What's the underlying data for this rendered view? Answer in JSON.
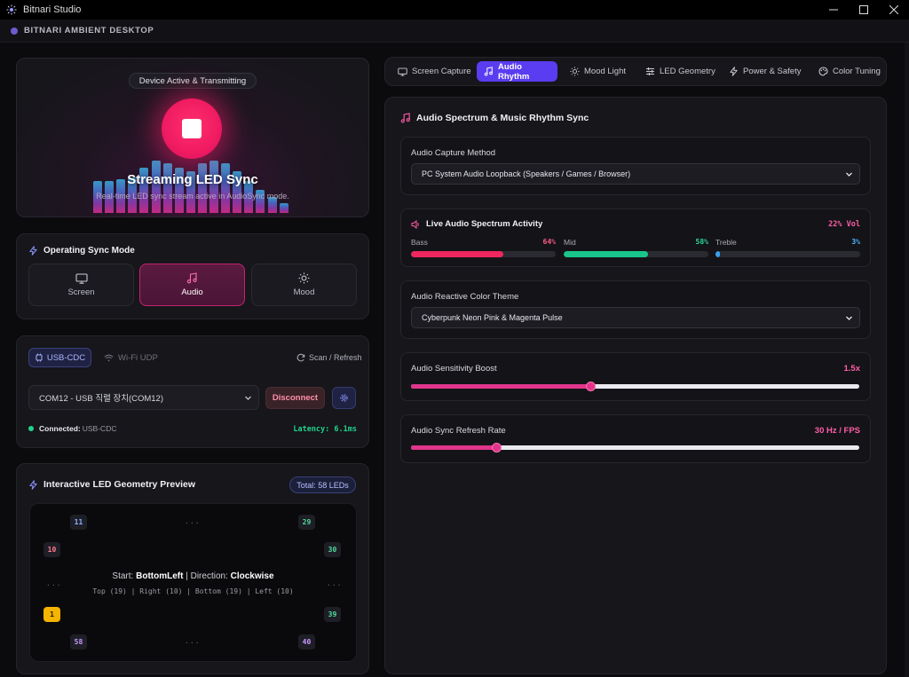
{
  "window": {
    "title": "Bitnari Studio",
    "app_header": "BITNARI AMBIENT DESKTOP"
  },
  "hero": {
    "status_pill": "Device Active & Transmitting",
    "title": "Streaming LED Sync",
    "subtitle": "Real-time LED sync stream active in AudioSync mode.",
    "bar_levels": [
      0.55,
      0.55,
      0.58,
      0.62,
      0.78,
      0.9,
      0.86,
      0.78,
      0.72,
      0.86,
      0.9,
      0.86,
      0.72,
      0.55,
      0.4,
      0.28,
      0.17
    ]
  },
  "sync_mode": {
    "title": "Operating Sync Mode",
    "options": [
      {
        "label": "Screen",
        "icon": "monitor-icon"
      },
      {
        "label": "Audio",
        "icon": "music-note-icon",
        "active": true
      },
      {
        "label": "Mood",
        "icon": "sun-icon"
      }
    ]
  },
  "connection": {
    "usb_tab": "USB-CDC",
    "wifi_tab": "Wi-Fi UDP",
    "scan_label": "Scan / Refresh",
    "port_value": "COM12 - USB 직렬 장치(COM12)",
    "disconnect_label": "Disconnect",
    "status_label": "Connected:",
    "status_value": "USB-CDC",
    "latency": "Latency: 6.1ms"
  },
  "geometry": {
    "title": "Interactive LED Geometry Preview",
    "total": "Total: 58 LEDs",
    "leds": {
      "top_left": "11",
      "top_right": "29",
      "left_upper": "10",
      "right_upper": "30",
      "left_lower": "1",
      "right_lower": "39",
      "bottom_left": "58",
      "bottom_right": "40"
    },
    "dots": "...",
    "start_label": "Start:",
    "start_value": "BottomLeft",
    "separator": "|",
    "direction_label": "Direction:",
    "direction_value": "Clockwise",
    "counts": "Top (19) | Right (10) | Bottom (19) | Left (10)"
  },
  "tabs": [
    {
      "label": "Screen Capture",
      "icon": "monitor-icon"
    },
    {
      "label": "Audio Rhythm",
      "icon": "music-note-icon",
      "active": true
    },
    {
      "label": "Mood Light",
      "icon": "sun-icon"
    },
    {
      "label": "LED Geometry",
      "icon": "sliders-icon"
    },
    {
      "label": "Power & Safety",
      "icon": "bolt-icon"
    },
    {
      "label": "Color Tuning",
      "icon": "palette-icon"
    }
  ],
  "audio_panel": {
    "title": "Audio Spectrum & Music Rhythm Sync",
    "capture_method_label": "Audio Capture Method",
    "capture_method_value": "PC System Audio Loopback (Speakers / Games / Browser)",
    "spectrum_title": "Live Audio Spectrum Activity",
    "volume": "22% Vol",
    "bands": [
      {
        "label": "Bass",
        "value": "64%",
        "level": 0.64,
        "color": "#f0265f"
      },
      {
        "label": "Mid",
        "value": "58%",
        "level": 0.58,
        "color": "#19c58a"
      },
      {
        "label": "Treble",
        "value": "3%",
        "level": 0.03,
        "color": "#3aa0f0"
      }
    ],
    "theme_label": "Audio Reactive Color Theme",
    "theme_value": "Cyberpunk Neon Pink & Magenta Pulse",
    "sensitivity_label": "Audio Sensitivity Boost",
    "sensitivity_value": "1.5x",
    "sensitivity_level": 0.4,
    "refresh_label": "Audio Sync Refresh Rate",
    "refresh_value": "30 Hz / FPS",
    "refresh_level": 0.19
  },
  "colors": {
    "accent_pink": "#e0358a",
    "accent_purple": "#5a3df0",
    "status_green": "#22d38a"
  }
}
